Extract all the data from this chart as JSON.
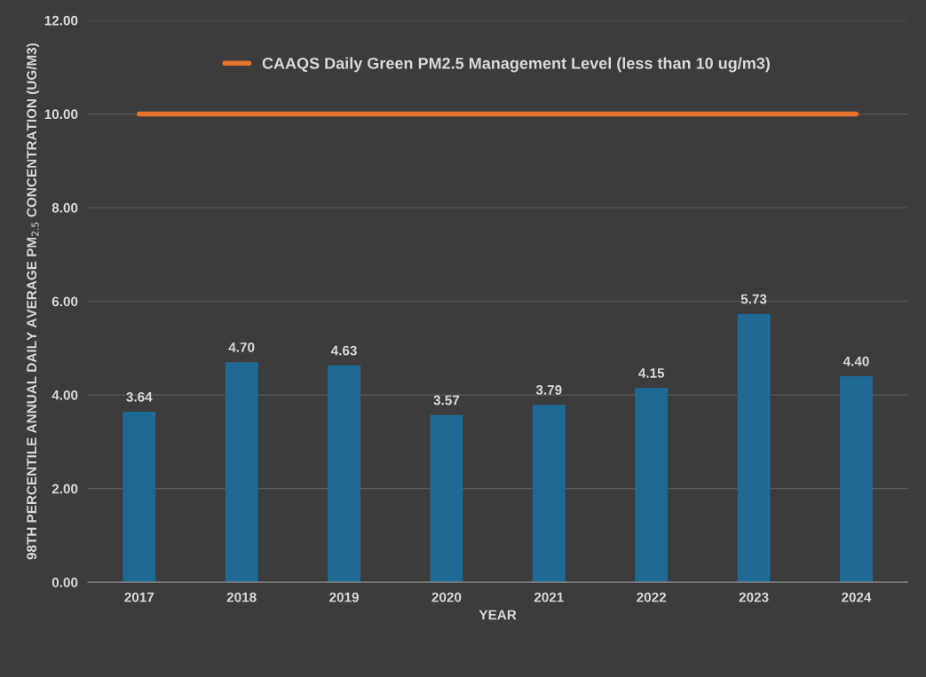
{
  "chart_data": {
    "type": "bar",
    "xlabel": "YEAR",
    "ylabel": "98TH PERCENTILE ANNUAL DAILY AVERAGE PM$_{2.5}$ CONCENTRATION (UG/M3)",
    "categories": [
      "2017",
      "2018",
      "2019",
      "2020",
      "2021",
      "2022",
      "2023",
      "2024"
    ],
    "series": [
      {
        "color": "#1f6a94",
        "values": [
          3.64,
          4.7,
          4.63,
          3.57,
          3.79,
          4.15,
          5.73,
          4.4
        ],
        "value_labels": [
          "3.64",
          "4.70",
          "4.63",
          "3.57",
          "3.79",
          "4.15",
          "5.73",
          "4.40"
        ]
      },
      {
        "type": "line",
        "name": "CAAQS Daily Green PM2.5 Management Level (less than 10 ug/m3)",
        "color": "#e8732a",
        "values": [
          10,
          10,
          10,
          10,
          10,
          10,
          10,
          10
        ]
      }
    ],
    "ylim": [
      0,
      12
    ],
    "yticks": [
      {
        "value": 0,
        "label": "0.00"
      },
      {
        "value": 2,
        "label": "2.00"
      },
      {
        "value": 4,
        "label": "4.00"
      },
      {
        "value": 6,
        "label": "6.00"
      },
      {
        "value": 8,
        "label": "8.00"
      },
      {
        "value": 10,
        "label": "10.00"
      },
      {
        "value": 12,
        "label": "12.00"
      }
    ],
    "grid": "y",
    "legend": "top"
  }
}
